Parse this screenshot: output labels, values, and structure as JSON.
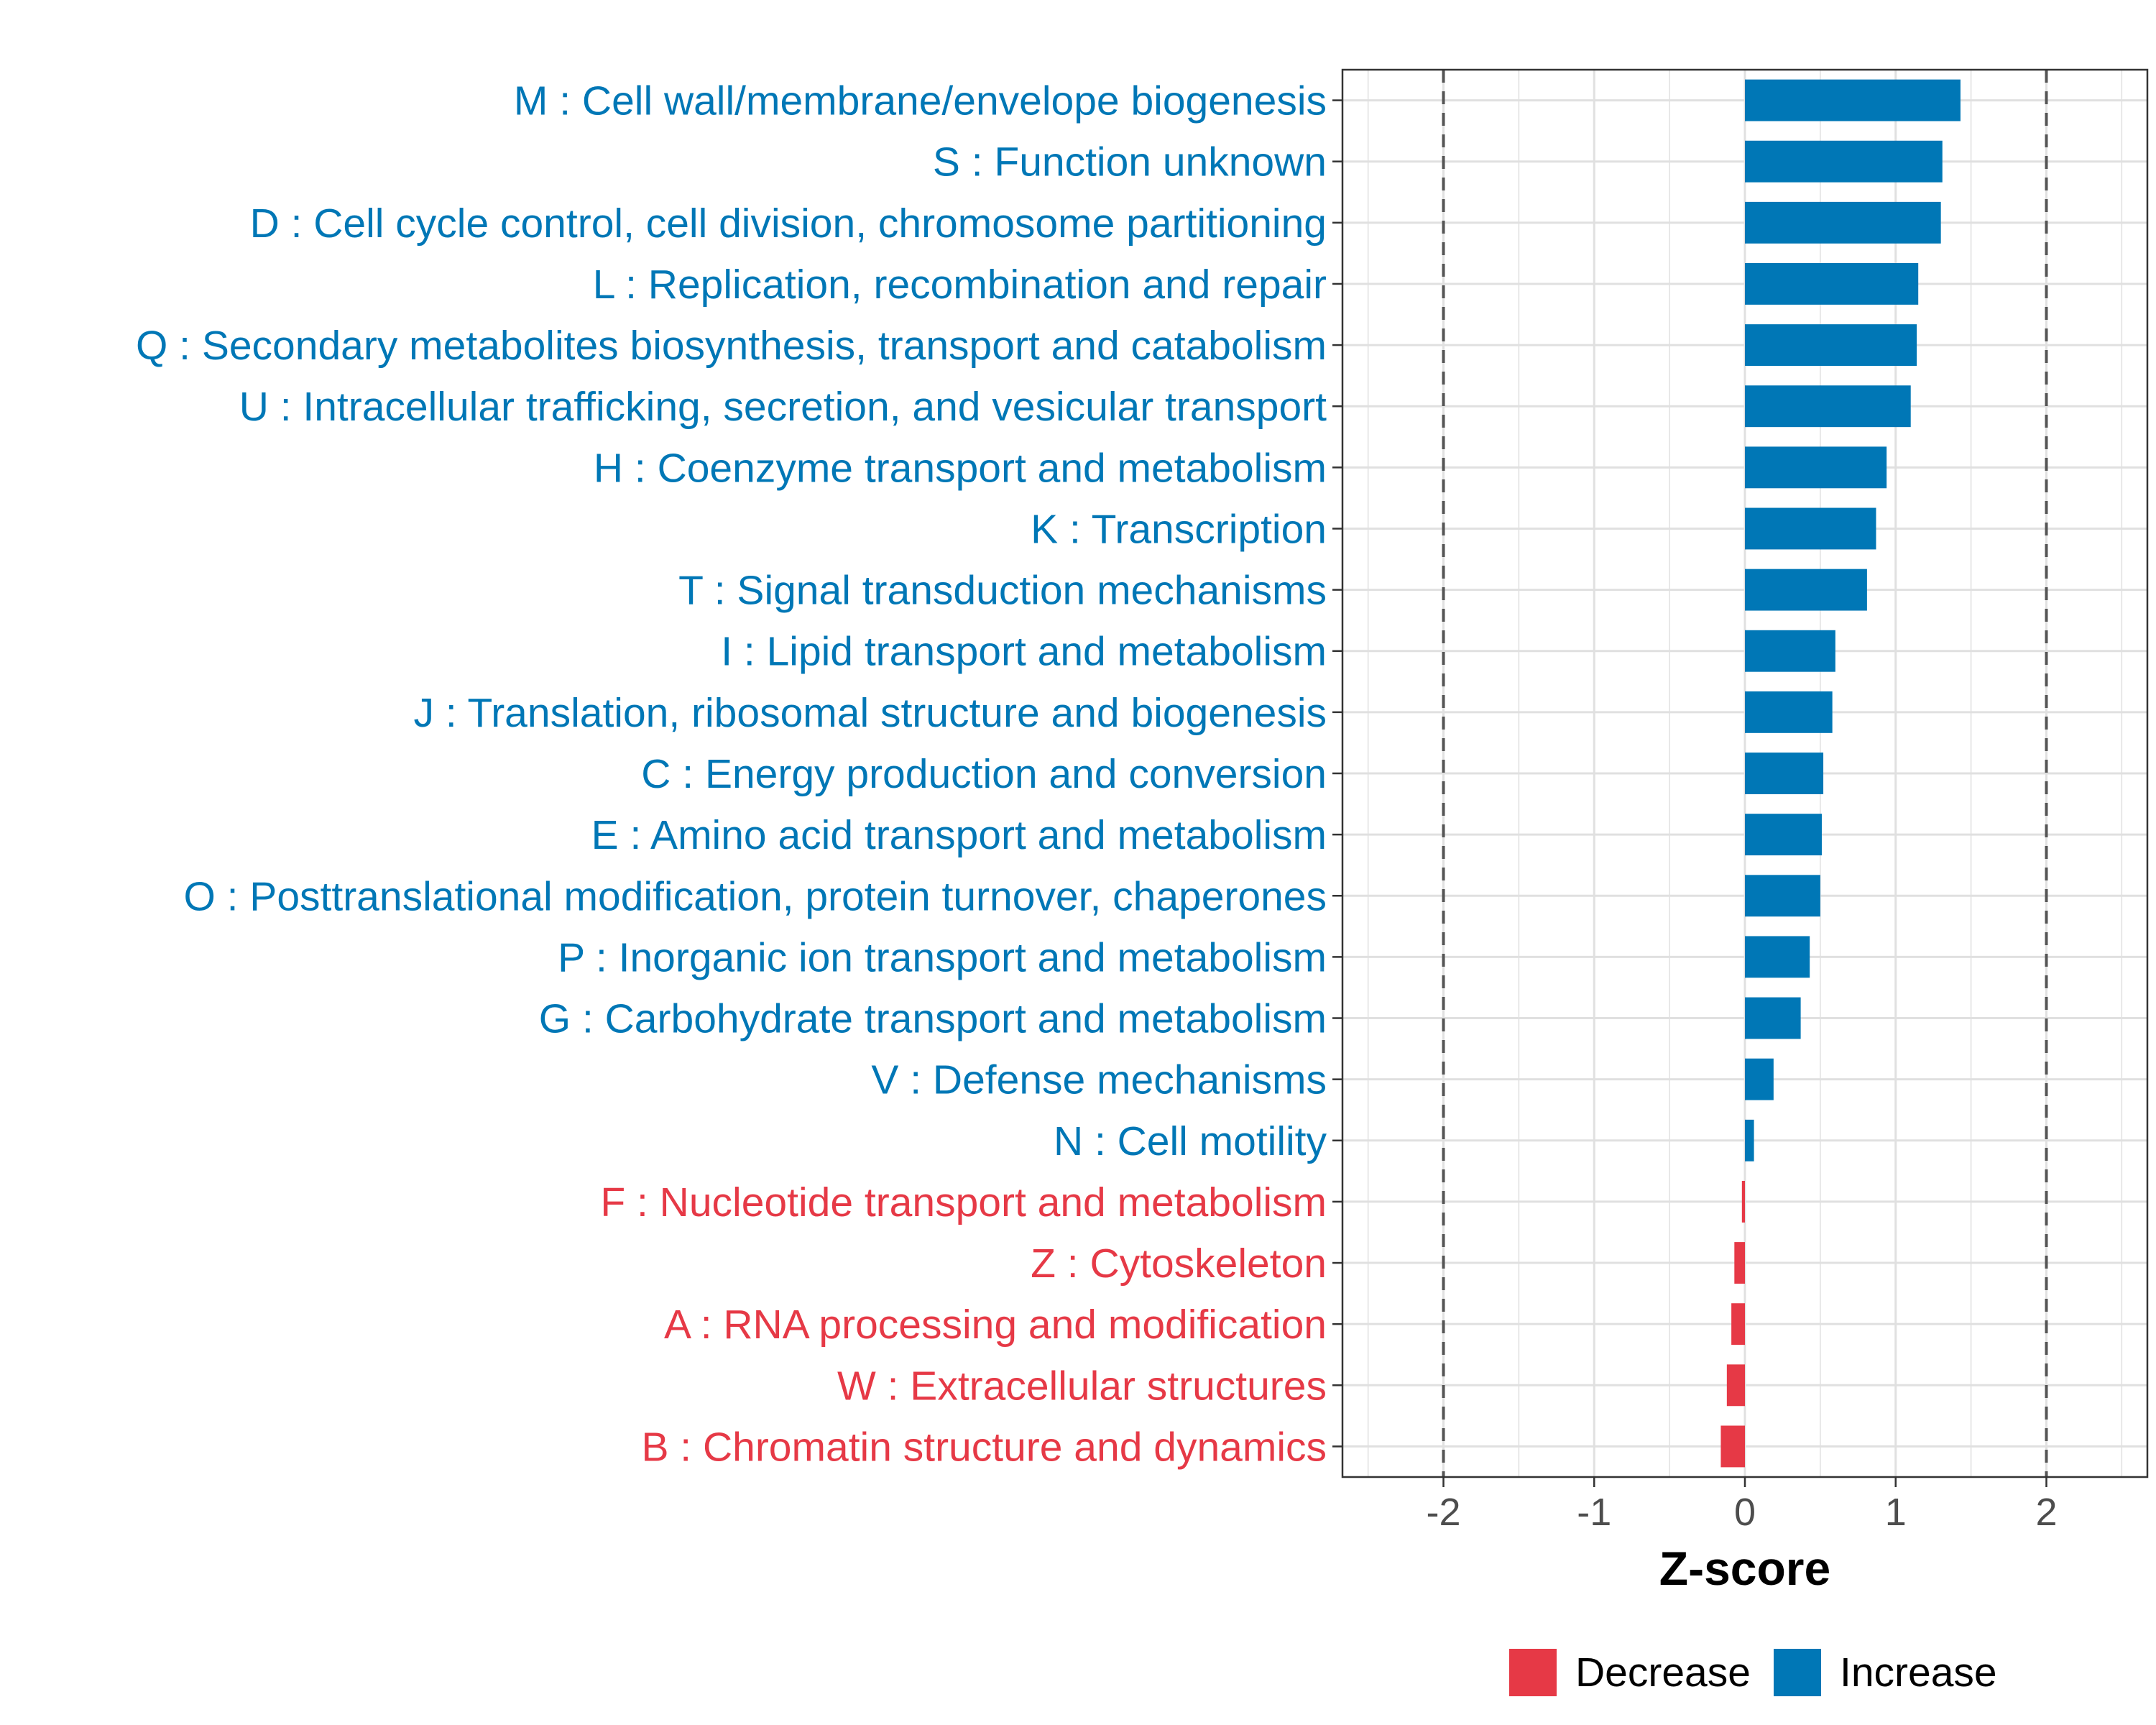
{
  "chart_data": {
    "type": "bar",
    "orientation": "horizontal",
    "xlabel": "Z-score",
    "xlim": [
      -2.67,
      2.67
    ],
    "xticks": [
      -2,
      -1,
      0,
      1,
      2
    ],
    "tick_labels": [
      "-2",
      "-1",
      "0",
      "1",
      "2"
    ],
    "reference_lines": [
      -2,
      2
    ],
    "grid": true,
    "legend_position": "bottom",
    "colors": {
      "Decrease": "#e63946",
      "Increase": "#0077b6"
    },
    "legend": [
      {
        "name": "Decrease",
        "color": "#e63946"
      },
      {
        "name": "Increase",
        "color": "#0077b6"
      }
    ],
    "categories": [
      "M : Cell wall/membrane/envelope biogenesis",
      "S : Function unknown",
      "D : Cell cycle control, cell division, chromosome partitioning",
      "L : Replication, recombination and repair",
      "Q : Secondary metabolites biosynthesis, transport and catabolism",
      "U : Intracellular trafficking, secretion, and vesicular transport",
      "H : Coenzyme transport and metabolism",
      "K : Transcription",
      "T : Signal transduction mechanisms",
      "I : Lipid transport and metabolism",
      "J : Translation, ribosomal structure and biogenesis",
      "C : Energy production and conversion",
      "E : Amino acid transport and metabolism",
      "O : Posttranslational modification, protein turnover, chaperones",
      "P : Inorganic ion transport and metabolism",
      "G : Carbohydrate transport and metabolism",
      "V : Defense mechanisms",
      "N : Cell motility",
      "F : Nucleotide transport and metabolism",
      "Z : Cytoskeleton",
      "A : RNA processing and modification",
      "W : Extracellular structures",
      "B : Chromatin structure and dynamics"
    ],
    "values": [
      1.43,
      1.31,
      1.3,
      1.15,
      1.14,
      1.1,
      0.94,
      0.87,
      0.81,
      0.6,
      0.58,
      0.52,
      0.51,
      0.5,
      0.43,
      0.37,
      0.19,
      0.06,
      -0.02,
      -0.07,
      -0.09,
      -0.12,
      -0.16
    ],
    "groups": [
      "Increase",
      "Increase",
      "Increase",
      "Increase",
      "Increase",
      "Increase",
      "Increase",
      "Increase",
      "Increase",
      "Increase",
      "Increase",
      "Increase",
      "Increase",
      "Increase",
      "Increase",
      "Increase",
      "Increase",
      "Increase",
      "Decrease",
      "Decrease",
      "Decrease",
      "Decrease",
      "Decrease"
    ]
  }
}
